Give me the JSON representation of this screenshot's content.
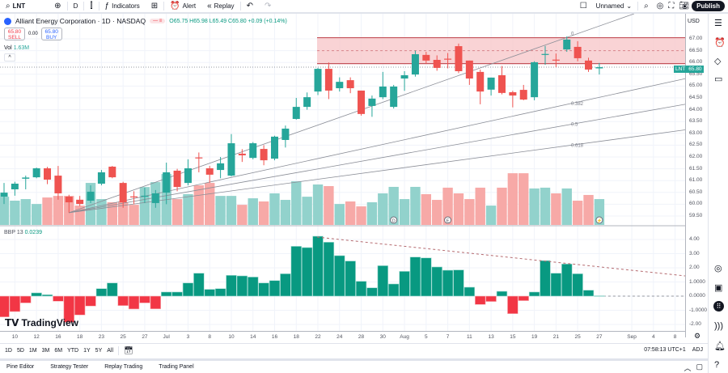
{
  "toolbar": {
    "symbol": "LNT",
    "interval": "D",
    "indicators": "Indicators",
    "alert": "Alert",
    "replay": "Replay",
    "layout_name": "Unnamed",
    "publish": "Publish"
  },
  "legend": {
    "title": "Alliant Energy Corporation · 1D · NASDAQ",
    "pill": "— ≡",
    "ohlc": "O65.75 H65.98 L65.49 C65.80 +0.09 (+0.14%)",
    "sell_price": "65.80",
    "sell_label": "SELL",
    "spread": "0.00",
    "buy_price": "65.80",
    "buy_label": "BUY",
    "vol_label": "Vol",
    "vol_value": "1.63M",
    "collapse": "^"
  },
  "bbp_legend": {
    "name": "BBP 13",
    "value": "0.0239"
  },
  "brand": "TradingView",
  "price_axis": {
    "currency": "USD",
    "ticks": [
      "67.00",
      "66.50",
      "66.00",
      "65.50",
      "65.00",
      "64.50",
      "64.00",
      "63.50",
      "63.00",
      "62.50",
      "62.00",
      "61.50",
      "61.00",
      "60.50",
      "60.00",
      "59.50"
    ],
    "last_symbol": "LNT",
    "last_price": "65.80"
  },
  "bbp_axis": {
    "ticks": [
      [
        "4.00",
        4
      ],
      [
        "3.00",
        3
      ],
      [
        "2.00",
        2
      ],
      [
        "1.0000",
        1
      ],
      [
        "0.0000",
        0
      ],
      [
        "-1.0000",
        -1
      ],
      [
        "-2.00",
        -2
      ]
    ]
  },
  "time_axis": [
    "10",
    "12",
    "16",
    "18",
    "23",
    "25",
    "27",
    "Jul",
    "3",
    "8",
    "10",
    "14",
    "16",
    "18",
    "22",
    "24",
    "28",
    "30",
    "Aug",
    "5",
    "7",
    "11",
    "13",
    "15",
    "19",
    "21",
    "25",
    "27",
    "Sep",
    "4",
    "8"
  ],
  "ranges": [
    "1D",
    "5D",
    "1M",
    "3M",
    "6M",
    "YTD",
    "1Y",
    "5Y",
    "All"
  ],
  "clock": "07:58:13 UTC+1",
  "adj": "ADJ",
  "bottom_tabs": [
    "Pine Editor",
    "Strategy Tester",
    "Replay Trading",
    "Trading Panel"
  ],
  "colors": {
    "up": "#26a69a",
    "down": "#ef5350",
    "vol_up": "#92d2cc",
    "vol_down": "#f7a9a7",
    "bbp_up": "#089981",
    "bbp_down": "#f23645",
    "zone": "#f8c8cb"
  },
  "drawings": {
    "zone": {
      "top": 67.05,
      "mid": 66.5,
      "bottom": 65.95
    },
    "fan_levels": [
      "0",
      "0.382",
      "0.5",
      "0.618"
    ],
    "markers": [
      "D",
      "E",
      "⚡"
    ]
  },
  "chart_data": {
    "type": "candlestick",
    "symbol": "LNT",
    "interval": "1D",
    "ylim": [
      59.3,
      67.8
    ],
    "ohlc": [
      [
        60.32,
        60.9,
        60.01,
        60.49
      ],
      [
        60.63,
        60.95,
        60.36,
        60.87
      ],
      [
        61.08,
        61.21,
        60.63,
        61.13
      ],
      [
        61.14,
        61.55,
        61.1,
        61.52
      ],
      [
        61.52,
        61.58,
        60.85,
        61.04
      ],
      [
        61.21,
        61.62,
        60.19,
        60.46
      ],
      [
        60.32,
        60.4,
        59.64,
        60.08
      ],
      [
        60.19,
        60.35,
        59.92,
        60.01
      ],
      [
        60.15,
        60.8,
        60.05,
        60.53
      ],
      [
        60.87,
        61.45,
        60.8,
        61.35
      ],
      [
        61.59,
        61.62,
        61.1,
        61.14
      ],
      [
        60.9,
        60.95,
        59.85,
        60.08
      ],
      [
        60.33,
        60.55,
        60.0,
        60.3
      ],
      [
        60.33,
        60.7,
        60.05,
        60.36
      ],
      [
        60.05,
        60.6,
        59.85,
        60.46
      ],
      [
        60.49,
        61.76,
        60.0,
        61.35
      ],
      [
        61.42,
        61.5,
        60.55,
        60.73
      ],
      [
        60.9,
        61.9,
        60.8,
        61.52
      ],
      [
        61.98,
        62.19,
        61.35,
        61.95
      ],
      [
        61.52,
        61.62,
        60.9,
        61.25
      ],
      [
        61.45,
        62.0,
        61.1,
        61.73
      ],
      [
        61.21,
        62.97,
        61.18,
        62.58
      ],
      [
        62.14,
        62.33,
        61.79,
        62.07
      ],
      [
        61.96,
        62.63,
        61.9,
        62.58
      ],
      [
        62.34,
        62.5,
        61.65,
        61.86
      ],
      [
        61.93,
        62.9,
        61.86,
        62.86
      ],
      [
        62.72,
        63.33,
        62.4,
        63.2
      ],
      [
        63.61,
        64.5,
        63.58,
        64.12
      ],
      [
        64.12,
        64.73,
        64.0,
        64.53
      ],
      [
        64.77,
        65.77,
        64.62,
        65.73
      ],
      [
        65.73,
        66.0,
        64.45,
        64.81
      ],
      [
        64.91,
        65.37,
        64.77,
        65.18
      ],
      [
        65.25,
        65.37,
        64.7,
        64.91
      ],
      [
        64.81,
        64.81,
        63.75,
        63.82
      ],
      [
        64.16,
        64.6,
        63.7,
        64.47
      ],
      [
        64.53,
        65.6,
        64.45,
        64.98
      ],
      [
        64.12,
        65.05,
        64.05,
        64.98
      ],
      [
        65.32,
        65.63,
        64.8,
        65.46
      ],
      [
        65.49,
        66.5,
        65.4,
        66.35
      ],
      [
        66.32,
        66.45,
        65.95,
        66.08
      ],
      [
        66.11,
        66.3,
        65.65,
        65.77
      ],
      [
        66.16,
        66.4,
        65.75,
        66.14
      ],
      [
        66.69,
        66.8,
        65.55,
        65.63
      ],
      [
        66.08,
        66.08,
        65.05,
        65.32
      ],
      [
        65.6,
        65.7,
        64.23,
        64.77
      ],
      [
        64.85,
        65.36,
        64.6,
        65.36
      ],
      [
        65.46,
        65.85,
        64.65,
        64.71
      ],
      [
        64.74,
        64.8,
        64.1,
        64.6
      ],
      [
        64.84,
        65.05,
        64.4,
        64.43
      ],
      [
        64.53,
        66.05,
        64.4,
        66.01
      ],
      [
        66.33,
        66.7,
        65.9,
        66.36
      ],
      [
        66.12,
        66.38,
        65.8,
        66.1
      ],
      [
        66.55,
        67.1,
        66.45,
        66.97
      ],
      [
        66.66,
        66.9,
        66.05,
        66.18
      ],
      [
        66.08,
        66.2,
        65.6,
        65.7
      ],
      [
        65.75,
        65.98,
        65.49,
        65.8
      ]
    ],
    "volume_millions": [
      1.78,
      1.53,
      1.63,
      1.32,
      1.73,
      1.83,
      1.83,
      1.22,
      2.65,
      1.63,
      1.43,
      1.43,
      1.27,
      2.39,
      2.7,
      3.21,
      1.63,
      1.94,
      2.5,
      2.65,
      1.83,
      1.83,
      1.27,
      1.68,
      1.48,
      1.99,
      1.58,
      2.75,
      1.78,
      2.55,
      2.45,
      1.32,
      1.48,
      1.17,
      1.43,
      1.99,
      2.4,
      1.63,
      2.4,
      1.94,
      1.58,
      2.35,
      1.99,
      1.63,
      2.35,
      1.22,
      2.35,
      3.26,
      3.26,
      2.3,
      2.35,
      1.99,
      2.3,
      1.53,
      1.89,
      1.63
    ],
    "bbp": [
      -1.47,
      -1.09,
      -0.48,
      0.23,
      0.1,
      -0.36,
      -1.85,
      -1.33,
      -0.7,
      0.53,
      0.93,
      -0.67,
      -0.91,
      -0.48,
      -0.9,
      0.29,
      0.29,
      0.93,
      1.62,
      0.48,
      0.53,
      1.47,
      1.43,
      1.35,
      0.93,
      1.1,
      1.58,
      3.52,
      3.43,
      4.23,
      3.81,
      2.86,
      2.48,
      1.05,
      0.59,
      2.15,
      0.86,
      1.75,
      2.76,
      2.7,
      2.06,
      1.83,
      1.85,
      0.63,
      -0.59,
      -0.38,
      0.34,
      -1.24,
      -0.32,
      0.29,
      2.51,
      1.62,
      2.27,
      1.58,
      0.42,
      0.0239
    ],
    "bbp_ylim": [
      -2.5,
      4.5
    ]
  }
}
